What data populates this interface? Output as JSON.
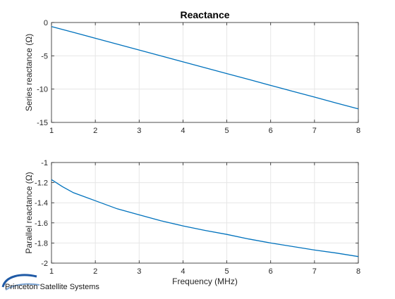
{
  "logo": {
    "text": "Princeton Satellite Systems"
  },
  "colors": {
    "line": "#0072BD",
    "grid": "#e6e6e6",
    "axis": "#262626",
    "logo": "#1f5aa6"
  },
  "chart_data": [
    {
      "type": "line",
      "title": "Reactance",
      "xlabel": "",
      "ylabel": "Series reactance (Ω)",
      "xlim": [
        1,
        8
      ],
      "ylim": [
        -15,
        0
      ],
      "xticks": [
        1,
        2,
        3,
        4,
        5,
        6,
        7,
        8
      ],
      "yticks": [
        -15,
        -10,
        -5,
        0
      ],
      "grid": true,
      "series": [
        {
          "x": [
            1,
            1.5,
            2,
            2.5,
            3,
            3.5,
            4,
            4.5,
            5,
            5.5,
            6,
            6.5,
            7,
            7.5,
            8
          ],
          "y": [
            -0.6,
            -1.48,
            -2.37,
            -3.25,
            -4.13,
            -5.02,
            -5.9,
            -6.79,
            -7.67,
            -8.55,
            -9.44,
            -10.32,
            -11.2,
            -12.09,
            -12.97
          ]
        }
      ]
    },
    {
      "type": "line",
      "title": "",
      "xlabel": "Frequency (MHz)",
      "ylabel": "Parallel reactance (Ω)",
      "xlim": [
        1,
        8
      ],
      "ylim": [
        -2,
        -1
      ],
      "xticks": [
        1,
        2,
        3,
        4,
        5,
        6,
        7,
        8
      ],
      "yticks": [
        -2,
        -1.8,
        -1.6,
        -1.4,
        -1.2,
        -1
      ],
      "grid": true,
      "series": [
        {
          "x": [
            1,
            1.25,
            1.5,
            2,
            2.5,
            3,
            3.5,
            4,
            4.5,
            5,
            5.5,
            6,
            6.5,
            7,
            7.5,
            8
          ],
          "y": [
            -1.17,
            -1.24,
            -1.3,
            -1.38,
            -1.46,
            -1.52,
            -1.58,
            -1.63,
            -1.675,
            -1.715,
            -1.76,
            -1.8,
            -1.835,
            -1.87,
            -1.9,
            -1.935
          ]
        }
      ]
    }
  ]
}
